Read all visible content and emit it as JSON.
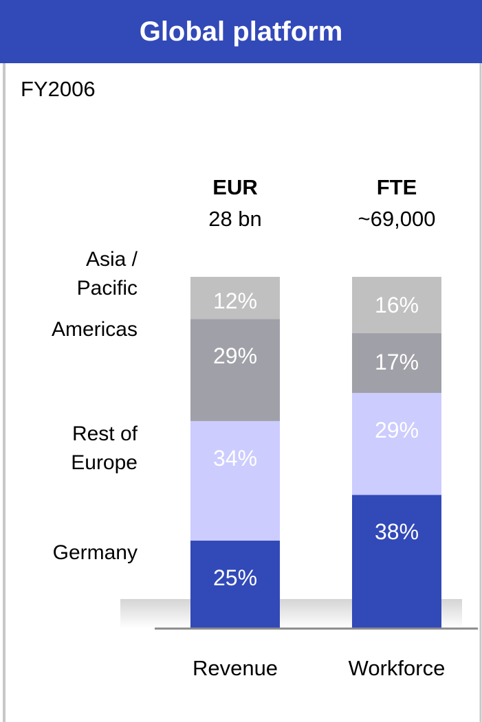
{
  "chart_data": {
    "type": "stacked_bar",
    "title": "Global platform",
    "subtitle": "FY2006",
    "column_headers": [
      {
        "title": "EUR",
        "subtitle": "28 bn"
      },
      {
        "title": "FTE",
        "subtitle": "~69,000"
      }
    ],
    "categories": [
      "Revenue",
      "Workforce"
    ],
    "series": [
      {
        "name": "Germany",
        "color": "#3249b8",
        "values": [
          25,
          38
        ],
        "value_labels": [
          "25%",
          "38%"
        ]
      },
      {
        "name": "Rest of Europe",
        "color": "#ccccff",
        "values": [
          34,
          29
        ],
        "value_labels": [
          "34%",
          "29%"
        ]
      },
      {
        "name": "Americas",
        "color": "#a0a0a8",
        "values": [
          29,
          17
        ],
        "value_labels": [
          "29%",
          "17%"
        ]
      },
      {
        "name": "Asia / Pacific",
        "color": "#c0c0c0",
        "values": [
          12,
          16
        ],
        "value_labels": [
          "12%",
          "16%"
        ]
      }
    ]
  }
}
